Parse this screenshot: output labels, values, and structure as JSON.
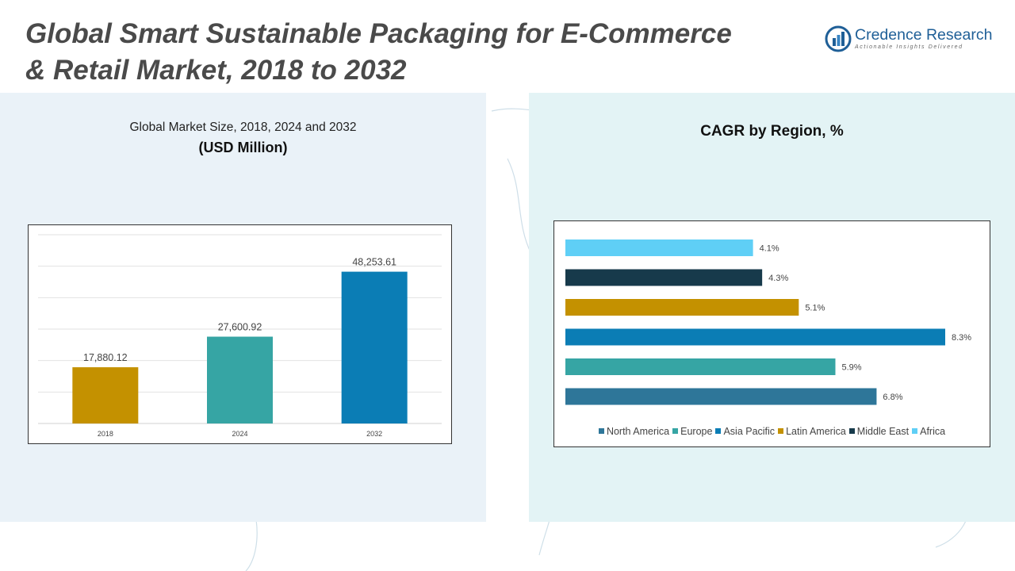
{
  "header": {
    "title_line1": "Global Smart Sustainable Packaging for E-Commerce",
    "title_line2": "& Retail Market, 2018 to 2032"
  },
  "logo": {
    "name": "Credence Research",
    "tagline": "Actionable Insights Delivered"
  },
  "left_panel": {
    "subtitle": "Global Market Size, 2018, 2024 and 2032",
    "unit": "(USD Million)"
  },
  "right_panel": {
    "title": "CAGR by Region, %"
  },
  "colors": {
    "left_panel_bg": "#eaf2f8",
    "right_panel_bg": "#e3f3f5",
    "title_text": "#4a4a4a",
    "logo_blue": "#1f5f97"
  },
  "chart_data": [
    {
      "type": "bar",
      "categories": [
        "2018",
        "2024",
        "2032"
      ],
      "values": [
        17880.12,
        27600.92,
        48253.61
      ],
      "value_labels": [
        "17,880.12",
        "27,600.92",
        "48,253.61"
      ],
      "colors": [
        "#c49100",
        "#36a5a4",
        "#0b7db5"
      ],
      "ylim": [
        0,
        60000
      ],
      "grid": true,
      "title": "",
      "xlabel": "",
      "ylabel": ""
    },
    {
      "type": "bar",
      "orientation": "horizontal",
      "categories": [
        "Africa",
        "Middle East",
        "Latin America",
        "Asia Pacific",
        "Europe",
        "North America"
      ],
      "values": [
        4.1,
        4.3,
        5.1,
        8.3,
        5.9,
        6.8
      ],
      "value_labels": [
        "4.1%",
        "4.3%",
        "5.1%",
        "8.3%",
        "5.9%",
        "6.8%"
      ],
      "colors": [
        "#5fcff6",
        "#173a4b",
        "#c49100",
        "#0b7db5",
        "#36a5a4",
        "#2e7699"
      ],
      "xlim": [
        0,
        8.3
      ],
      "grid": false,
      "legend": {
        "position": "bottom",
        "entries": [
          {
            "label": "North America",
            "color": "#2e7699"
          },
          {
            "label": "Europe",
            "color": "#36a5a4"
          },
          {
            "label": "Asia Pacific",
            "color": "#0b7db5"
          },
          {
            "label": "Latin America",
            "color": "#c49100"
          },
          {
            "label": "Middle East",
            "color": "#173a4b"
          },
          {
            "label": "Africa",
            "color": "#5fcff6"
          }
        ]
      },
      "title": "",
      "xlabel": "",
      "ylabel": ""
    }
  ]
}
